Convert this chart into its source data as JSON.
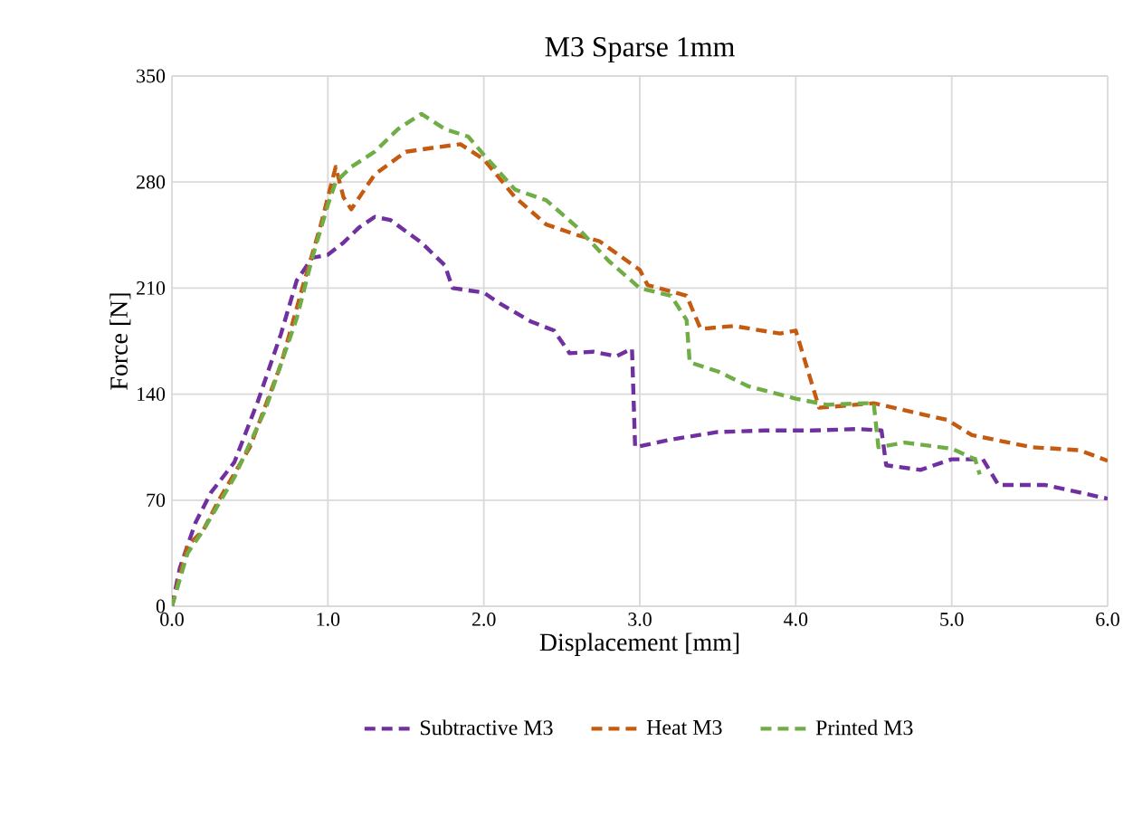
{
  "chart_data": {
    "type": "line",
    "title": "M3 Sparse 1mm",
    "xlabel": "Displacement [mm]",
    "ylabel": "Force [N]",
    "xlim": [
      0,
      6
    ],
    "ylim": [
      0,
      350
    ],
    "xticks": [
      {
        "value": 0,
        "label": "0.0"
      },
      {
        "value": 1,
        "label": "1.0"
      },
      {
        "value": 2,
        "label": "2.0"
      },
      {
        "value": 3,
        "label": "3.0"
      },
      {
        "value": 4,
        "label": "4.0"
      },
      {
        "value": 5,
        "label": "5.0"
      },
      {
        "value": 6,
        "label": "6.0"
      }
    ],
    "yticks": [
      0,
      70,
      140,
      210,
      280,
      350
    ],
    "grid": true,
    "legend": "bottom",
    "line_style": "dashed",
    "series": [
      {
        "name": "Subtractive M3",
        "color": "#7030a0",
        "x": [
          0,
          0.05,
          0.15,
          0.25,
          0.4,
          0.55,
          0.7,
          0.8,
          0.9,
          1.0,
          1.1,
          1.2,
          1.3,
          1.4,
          1.6,
          1.75,
          1.8,
          2.0,
          2.1,
          2.3,
          2.45,
          2.55,
          2.7,
          2.85,
          2.95,
          2.97,
          3.2,
          3.5,
          3.8,
          4.1,
          4.4,
          4.55,
          4.58,
          4.8,
          5.0,
          5.2,
          5.3,
          5.6,
          6.0
        ],
        "values": [
          0,
          25,
          55,
          75,
          95,
          135,
          180,
          215,
          230,
          232,
          240,
          250,
          257,
          255,
          240,
          225,
          210,
          207,
          200,
          188,
          182,
          167,
          168,
          165,
          170,
          105,
          110,
          115,
          116,
          116,
          117,
          116,
          93,
          90,
          97,
          97,
          80,
          80,
          71
        ]
      },
      {
        "name": "Heat M3",
        "color": "#c55a11",
        "x": [
          0,
          0.1,
          0.2,
          0.3,
          0.5,
          0.7,
          0.85,
          0.95,
          1.05,
          1.1,
          1.15,
          1.3,
          1.5,
          1.7,
          1.85,
          2.0,
          2.2,
          2.4,
          2.6,
          2.74,
          3.0,
          3.05,
          3.3,
          3.39,
          3.6,
          3.9,
          4.0,
          4.15,
          4.5,
          4.97,
          5.13,
          5.51,
          5.82,
          6.0
        ],
        "values": [
          0,
          40,
          50,
          70,
          105,
          160,
          215,
          250,
          290,
          270,
          262,
          285,
          300,
          303,
          305,
          295,
          270,
          252,
          245,
          241,
          222,
          212,
          205,
          183,
          185,
          180,
          182,
          131,
          134,
          123,
          113,
          105,
          103,
          96
        ]
      },
      {
        "name": "Printed M3",
        "color": "#70ad47",
        "x": [
          0,
          0.1,
          0.2,
          0.4,
          0.6,
          0.8,
          0.9,
          1.0,
          1.05,
          1.15,
          1.3,
          1.45,
          1.6,
          1.75,
          1.9,
          2.0,
          2.2,
          2.4,
          2.6,
          2.8,
          3.0,
          3.2,
          3.3,
          3.32,
          3.5,
          3.7,
          4.0,
          4.2,
          4.45,
          4.5,
          4.53,
          4.7,
          5.0,
          5.15,
          5.18
        ],
        "values": [
          0,
          35,
          50,
          85,
          130,
          190,
          230,
          265,
          280,
          290,
          300,
          315,
          325,
          315,
          310,
          298,
          275,
          268,
          250,
          228,
          210,
          205,
          189,
          161,
          155,
          145,
          137,
          133,
          134,
          134,
          105,
          108,
          104,
          97,
          87
        ]
      }
    ]
  }
}
